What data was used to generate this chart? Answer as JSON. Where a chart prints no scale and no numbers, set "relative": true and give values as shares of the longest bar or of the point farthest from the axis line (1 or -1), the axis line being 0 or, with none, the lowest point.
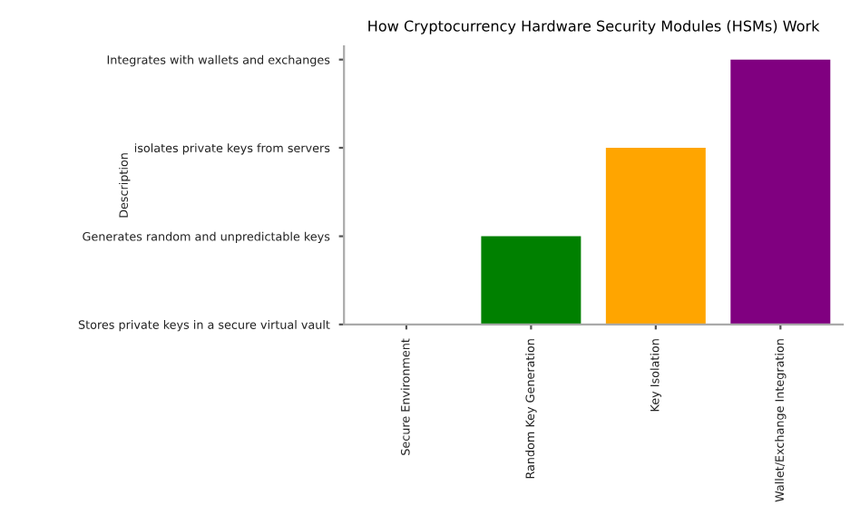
{
  "chart_data": {
    "type": "bar",
    "title": "How Cryptocurrency Hardware Security Modules (HSMs) Work",
    "categories": [
      "Secure Environment",
      "Random Key Generation",
      "Key Isolation",
      "Wallet/Exchange Integration"
    ],
    "values": [
      0,
      0.333,
      0.667,
      1
    ],
    "relative": true,
    "colors": [
      "#1f77b4",
      "#008000",
      "#ffa500",
      "#800080"
    ],
    "annotations": [
      "Stores private keys in a secure virtual vault",
      "Generates random and unpredictable keys",
      "isolates private keys from servers",
      "Integrates with wallets and exchanges",
      "Description"
    ],
    "grid": false
  }
}
